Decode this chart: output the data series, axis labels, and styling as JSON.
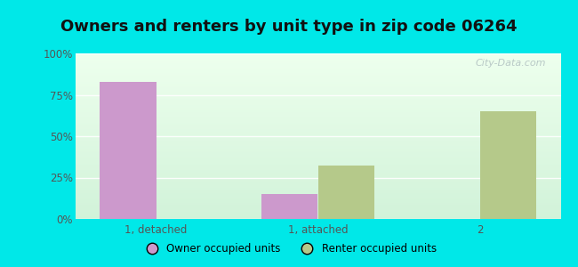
{
  "title": "Owners and renters by unit type in zip code 06264",
  "categories": [
    "1, detached",
    "1, attached",
    "2"
  ],
  "owner_values": [
    83,
    15,
    0
  ],
  "renter_values": [
    0,
    32,
    65
  ],
  "owner_color": "#cc99cc",
  "renter_color": "#b5c98a",
  "ylim": [
    0,
    100
  ],
  "yticks": [
    0,
    25,
    50,
    75,
    100
  ],
  "ytick_labels": [
    "0%",
    "25%",
    "50%",
    "75%",
    "100%"
  ],
  "bg_outer": "#00e8e8",
  "bar_width": 0.35,
  "legend_labels": [
    "Owner occupied units",
    "Renter occupied units"
  ],
  "title_fontsize": 13,
  "watermark": "City-Data.com"
}
